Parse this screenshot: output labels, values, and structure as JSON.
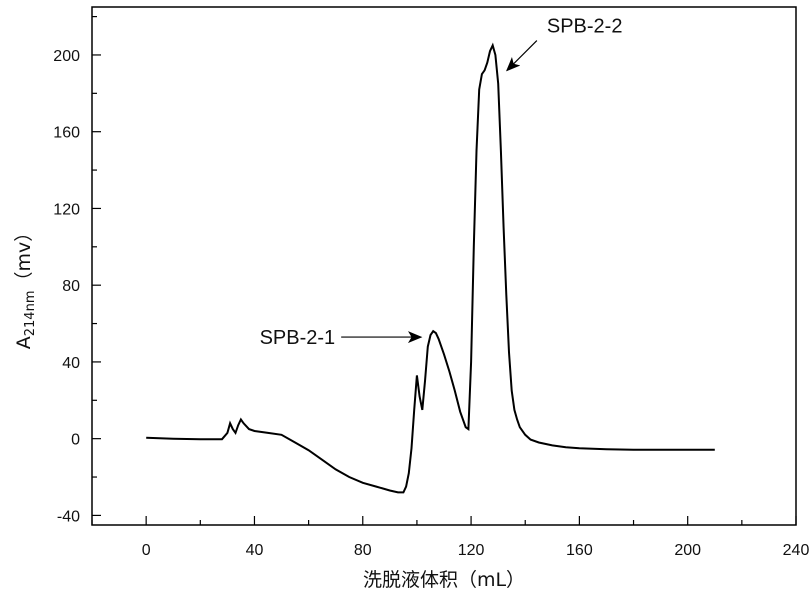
{
  "chart_data": {
    "type": "line",
    "xlabel": "洗脱液体积（mL）",
    "ylabel_main": "A",
    "ylabel_sub": "214nm",
    "ylabel_unit": "（mv）",
    "xlim": [
      -20,
      240
    ],
    "ylim": [
      -45,
      225
    ],
    "xticks": [
      0,
      40,
      80,
      120,
      160,
      200,
      240
    ],
    "yticks": [
      -40,
      0,
      40,
      80,
      120,
      160,
      200
    ],
    "grid": false,
    "series": [
      {
        "x": [
          0,
          5,
          10,
          20,
          28,
          30,
          31,
          32,
          33,
          34,
          35,
          36,
          38,
          40,
          45,
          50,
          55,
          60,
          65,
          70,
          75,
          80,
          85,
          90,
          93,
          95,
          96,
          97,
          98,
          99,
          100,
          101,
          102,
          103,
          104,
          105,
          106,
          107,
          108,
          110,
          112,
          114,
          116,
          118,
          119,
          120,
          121,
          122,
          123,
          124,
          125,
          126,
          127,
          128,
          129,
          130,
          131,
          132,
          133,
          134,
          135,
          136,
          137,
          138,
          140,
          142,
          145,
          150,
          155,
          160,
          170,
          180,
          190,
          200,
          210
        ],
        "values": [
          0.5,
          0.2,
          0,
          -0.3,
          -0.3,
          3,
          8,
          5,
          3,
          7,
          10,
          8,
          5,
          4,
          3,
          2,
          -2,
          -6,
          -11,
          -16,
          -20,
          -23,
          -25,
          -27,
          -28,
          -28,
          -25,
          -18,
          -5,
          15,
          33,
          22,
          15,
          30,
          48,
          54,
          56,
          55,
          52,
          44,
          35,
          25,
          14,
          6,
          5,
          40,
          100,
          150,
          182,
          190,
          192,
          196,
          202,
          205,
          200,
          185,
          150,
          110,
          75,
          45,
          25,
          15,
          10,
          6,
          2,
          -0.5,
          -2,
          -3.5,
          -4.5,
          -5,
          -5.5,
          -5.8,
          -5.8,
          -5.8,
          -5.8
        ]
      }
    ],
    "annotations": [
      {
        "text": "SPB-2-1",
        "target_x": 106,
        "target_y": 54
      },
      {
        "text": "SPB-2-2",
        "target_x": 131,
        "target_y": 195
      }
    ]
  }
}
